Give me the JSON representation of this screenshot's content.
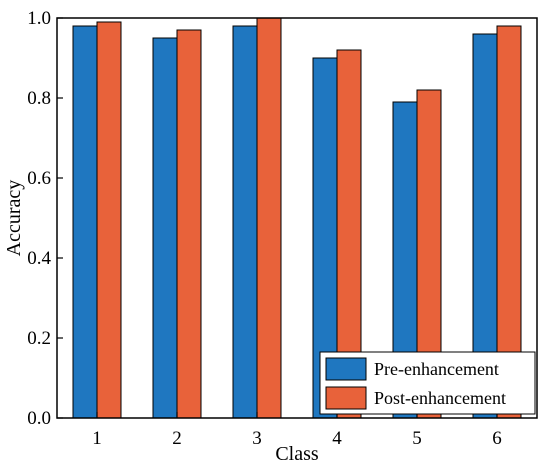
{
  "chart_data": {
    "type": "bar",
    "categories": [
      "1",
      "2",
      "3",
      "4",
      "5",
      "6"
    ],
    "series": [
      {
        "name": "Pre-enhancement",
        "values": [
          0.98,
          0.95,
          0.98,
          0.9,
          0.79,
          0.96
        ],
        "color": "#1f77c0"
      },
      {
        "name": "Post-enhancement",
        "values": [
          0.99,
          0.97,
          1.0,
          0.92,
          0.82,
          0.98
        ],
        "color": "#e8623a"
      }
    ],
    "xlabel": "Class",
    "ylabel": "Accuracy",
    "ylim": [
      0,
      1.0
    ],
    "yticks": [
      "0.0",
      "0.2",
      "0.4",
      "0.6",
      "0.8",
      "1.0"
    ],
    "grid": false,
    "legend_position": "bottom-right"
  }
}
